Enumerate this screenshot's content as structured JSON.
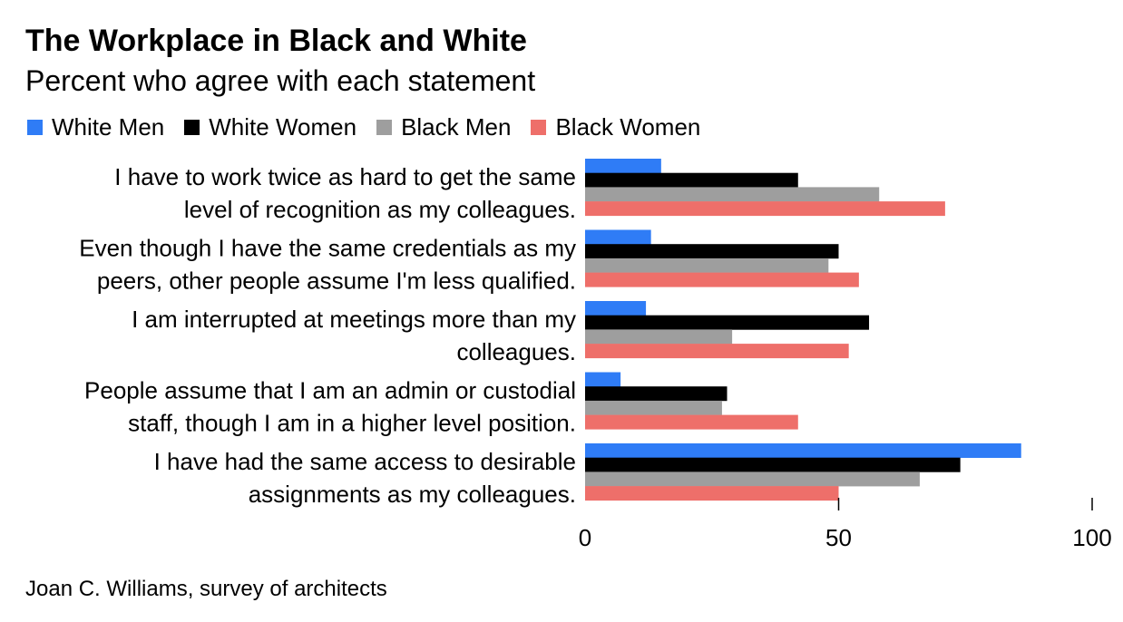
{
  "title": "The Workplace in Black and White",
  "subtitle": "Percent who agree with each statement",
  "source": "Joan C. Williams, survey of architects",
  "chart_data": {
    "type": "bar",
    "orientation": "horizontal",
    "categories": [
      [
        "I have to work twice as hard to get the same",
        "level of recognition as my colleagues."
      ],
      [
        "Even though I have the same credentials as my",
        "peers, other people assume I'm less qualified."
      ],
      [
        "I am interrupted at meetings more than my",
        "colleagues."
      ],
      [
        "People assume that I am an admin or custodial",
        "staff, though I am in a higher level position."
      ],
      [
        "I have had the same access to desirable",
        "assignments as my colleagues."
      ]
    ],
    "series": [
      {
        "name": "White Men",
        "color": "#2f7cf6",
        "values": [
          15,
          13,
          12,
          7,
          86
        ]
      },
      {
        "name": "White Women",
        "color": "#000000",
        "values": [
          42,
          50,
          56,
          28,
          74
        ]
      },
      {
        "name": "Black Men",
        "color": "#9e9e9e",
        "values": [
          58,
          48,
          29,
          27,
          66
        ]
      },
      {
        "name": "Black Women",
        "color": "#ee6f6a",
        "values": [
          71,
          54,
          52,
          42,
          50
        ]
      }
    ],
    "xlim": [
      0,
      100
    ],
    "xticks": [
      "0",
      "50",
      "100"
    ],
    "legend_position": "top-left"
  }
}
